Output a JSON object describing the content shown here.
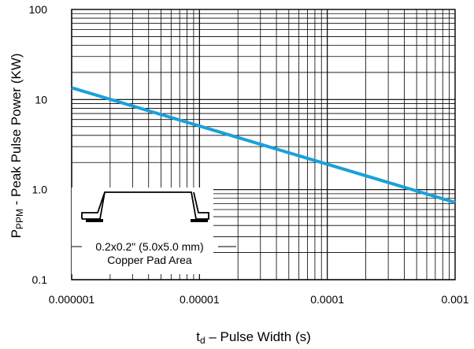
{
  "chart_data": {
    "type": "line",
    "xscale": "log",
    "yscale": "log",
    "xlim": [
      1e-06,
      0.001
    ],
    "ylim": [
      0.1,
      100
    ],
    "grid": true,
    "x_ticks": [
      "0.000001",
      "0.00001",
      "0.0001",
      "0.001"
    ],
    "y_ticks": [
      "0.1",
      "1.0",
      "10",
      "100"
    ],
    "ylabel": {
      "prefix": "P",
      "subscript": "PPM",
      "text": " - Peak Pulse Power (KW)"
    },
    "xlabel": {
      "prefix": "t",
      "subscript": "d",
      "text": " – Pulse Width (s)"
    },
    "series": [
      {
        "color": "#1aa0dc",
        "x": [
          1e-06,
          0.001
        ],
        "y": [
          13.5,
          0.72
        ]
      }
    ],
    "annotation": {
      "line1": "0.2x0.2\" (5.0x5.0 mm)",
      "line2": "Copper Pad Area"
    }
  }
}
